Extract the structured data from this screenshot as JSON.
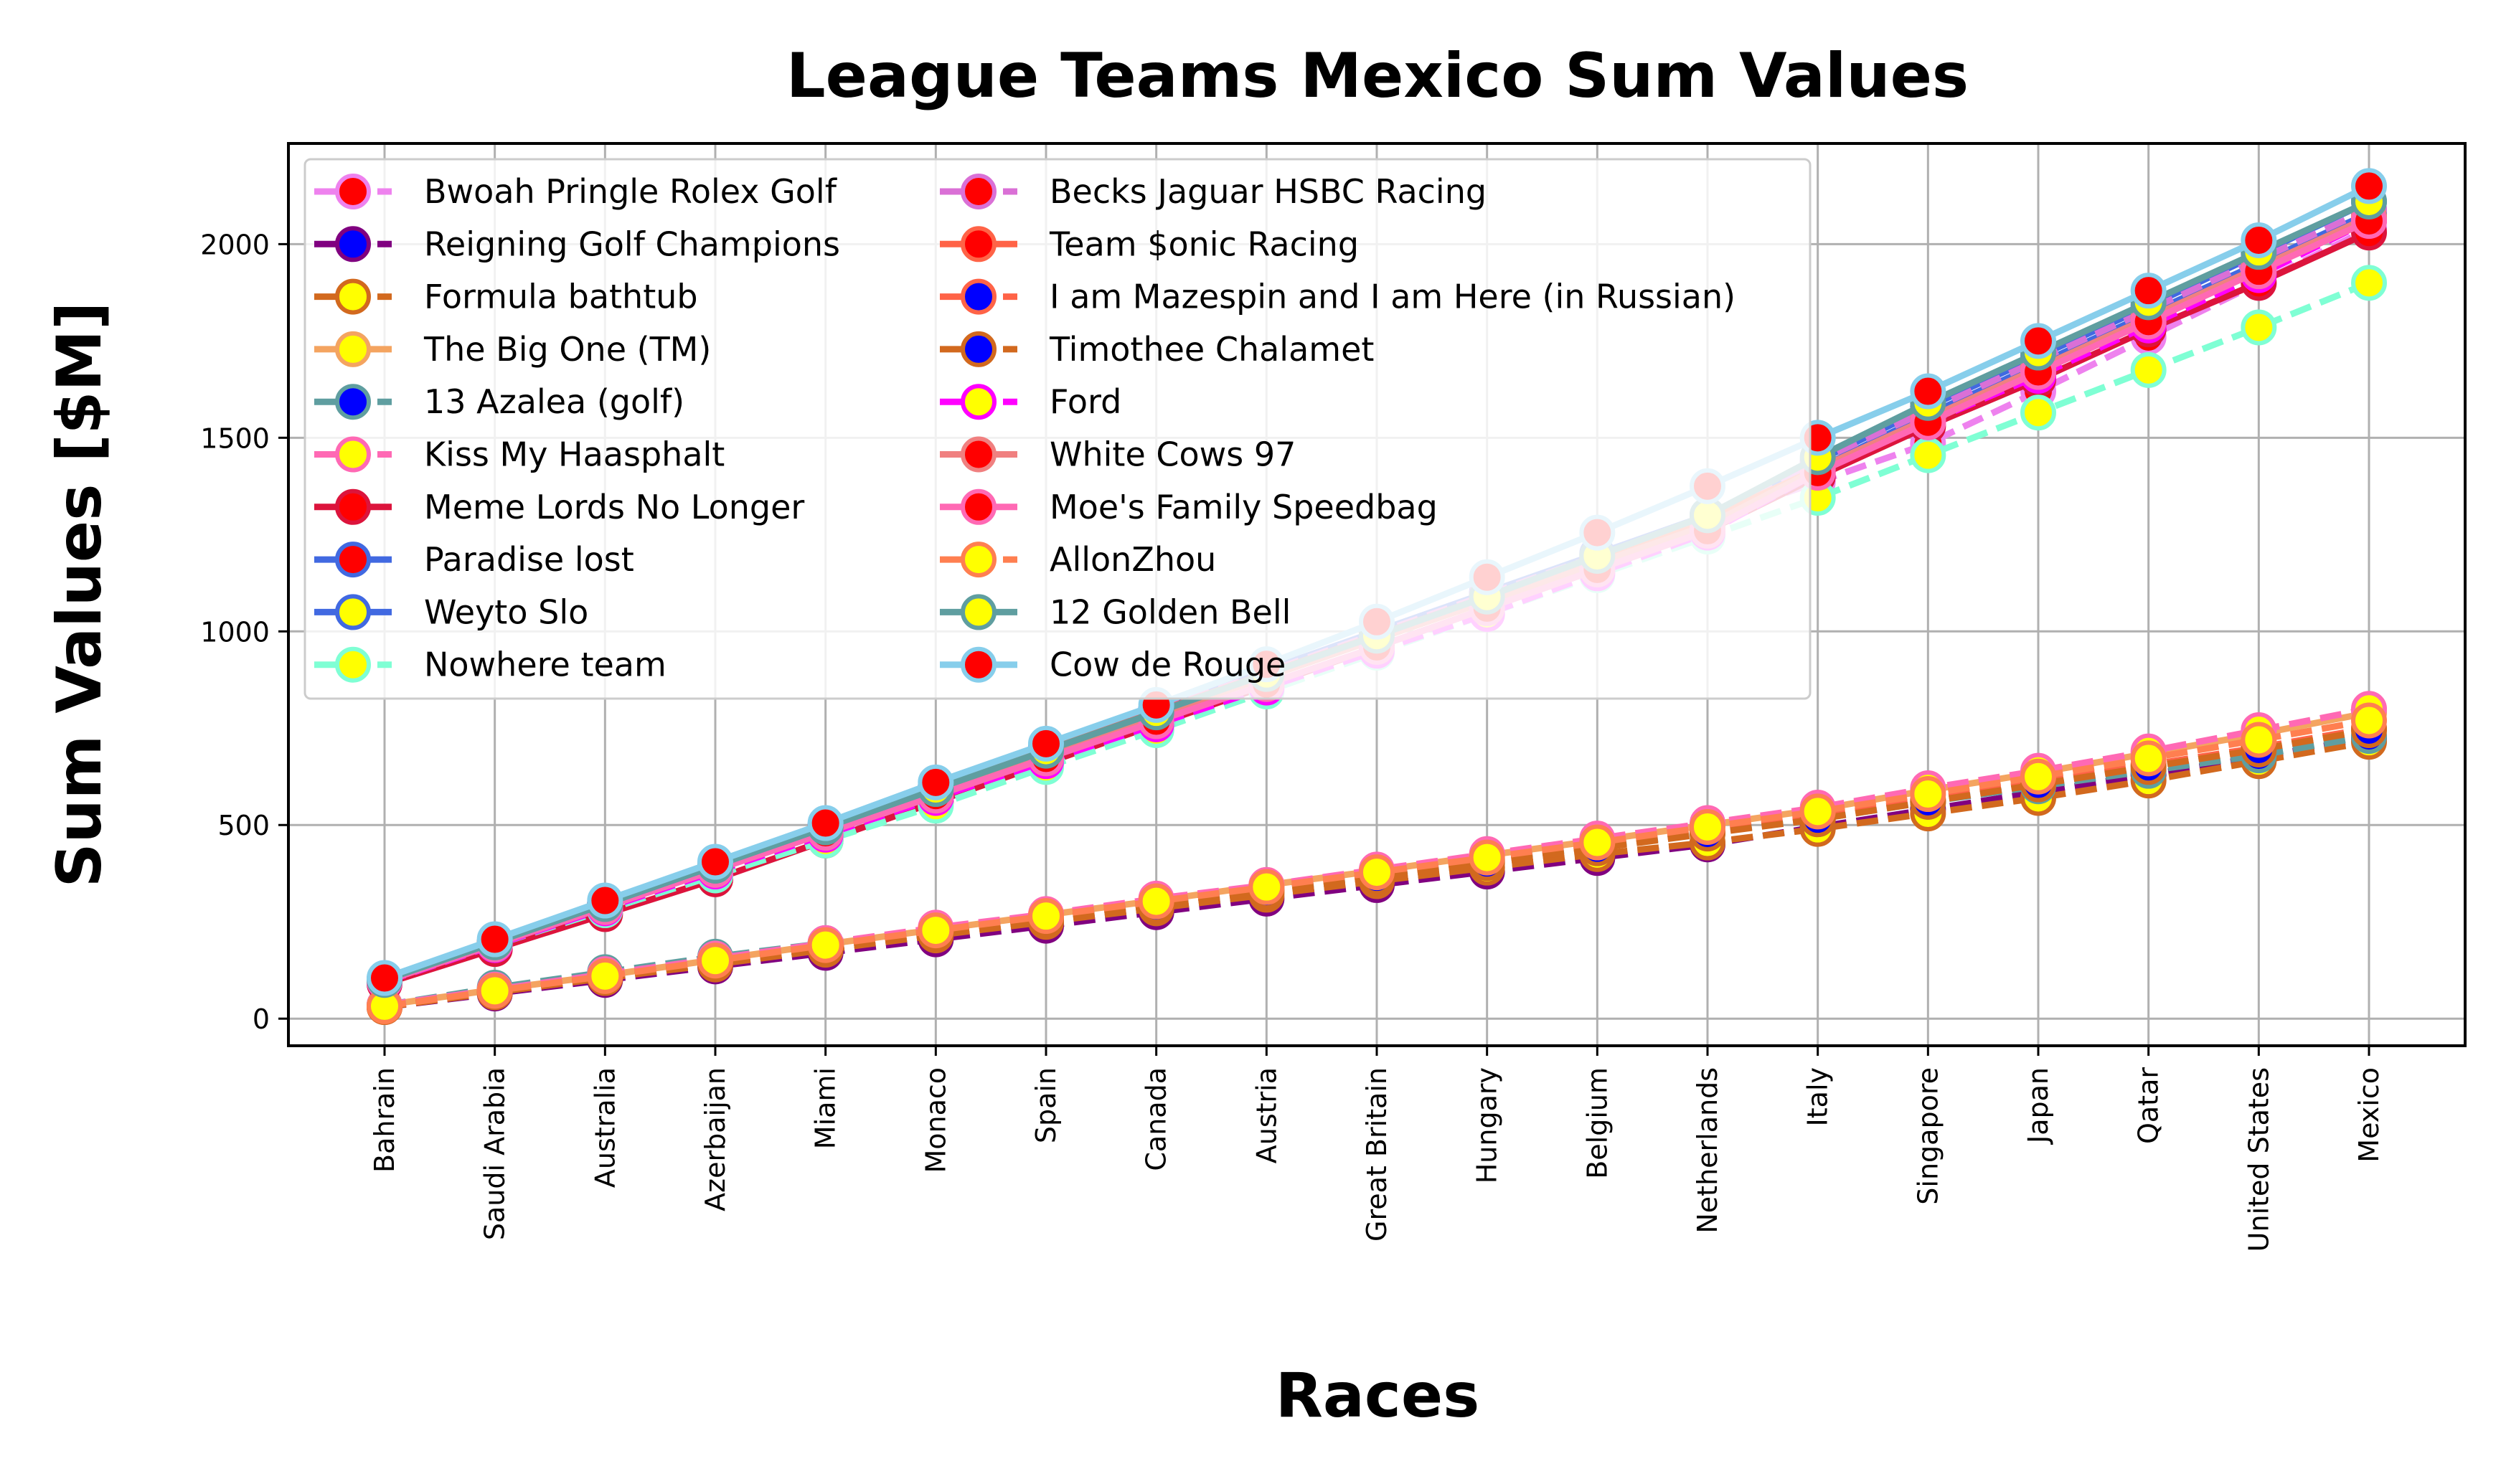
{
  "chart_data": {
    "type": "line",
    "title": "League Teams Mexico Sum Values",
    "xlabel": "Races",
    "ylabel": "Sum Values [$M]",
    "ylim": [
      -70,
      2260
    ],
    "yticks": [
      0,
      500,
      1000,
      1500,
      2000
    ],
    "grid": true,
    "legend_position": "upper-left",
    "legend_columns": 2,
    "categories": [
      "Bahrain",
      "Saudi Arabia",
      "Australia",
      "Azerbaijan",
      "Miami",
      "Monaco",
      "Spain",
      "Canada",
      "Austria",
      "Great Britain",
      "Hungary",
      "Belgium",
      "Netherlands",
      "Italy",
      "Singapore",
      "Japan",
      "Qatar",
      "United States",
      "Mexico"
    ],
    "series": [
      {
        "name": "Bwoah Pringle Rolex Golf",
        "color": "#ee82ee",
        "marker_face": "#ff0000",
        "dashed": true,
        "values": [
          100,
          198,
          297,
          396,
          495,
          594,
          693,
          792,
          891,
          990,
          1089,
          1188,
          1287,
          1386,
          1485,
          1620,
          1760,
          1900,
          2040
        ]
      },
      {
        "name": "Reigning Golf Champions",
        "color": "#800080",
        "marker_face": "#0000ff",
        "dashed": true,
        "values": [
          30,
          65,
          100,
          135,
          170,
          205,
          240,
          275,
          310,
          345,
          380,
          415,
          450,
          495,
          540,
          585,
          630,
          675,
          725
        ]
      },
      {
        "name": "Formula bathtub",
        "color": "#d2691e",
        "marker_face": "#ffff00",
        "dashed": true,
        "values": [
          30,
          68,
          105,
          140,
          178,
          215,
          250,
          285,
          320,
          355,
          390,
          425,
          455,
          490,
          530,
          570,
          615,
          665,
          715
        ]
      },
      {
        "name": "The Big One (TM)",
        "color": "#f4a460",
        "marker_face": "#ffff00",
        "dashed": false,
        "values": [
          35,
          75,
          112,
          152,
          192,
          230,
          268,
          305,
          345,
          382,
          422,
          460,
          500,
          540,
          590,
          635,
          685,
          735,
          790
        ]
      },
      {
        "name": "13 Azalea (golf)",
        "color": "#5f9ea0",
        "marker_face": "#0000ff",
        "dashed": true,
        "values": [
          35,
          80,
          120,
          160,
          195,
          230,
          265,
          300,
          335,
          370,
          410,
          445,
          480,
          515,
          560,
          600,
          640,
          680,
          730
        ]
      },
      {
        "name": "Kiss My Haasphalt",
        "color": "#ff69b4",
        "marker_face": "#ffff00",
        "dashed": true,
        "values": [
          35,
          75,
          115,
          155,
          195,
          235,
          270,
          310,
          345,
          385,
          425,
          465,
          505,
          545,
          595,
          640,
          690,
          745,
          800
        ]
      },
      {
        "name": "Meme Lords No Longer",
        "color": "#dc143c",
        "marker_face": "#ff0000",
        "dashed": false,
        "values": [
          90,
          180,
          270,
          360,
          460,
          560,
          660,
          760,
          860,
          960,
          1060,
          1160,
          1260,
          1400,
          1530,
          1650,
          1780,
          1900,
          2030
        ]
      },
      {
        "name": "Paradise lost",
        "color": "#4169e1",
        "marker_face": "#ff0000",
        "dashed": false,
        "values": [
          100,
          198,
          298,
          398,
          500,
          600,
          700,
          800,
          900,
          1000,
          1100,
          1200,
          1300,
          1420,
          1560,
          1690,
          1820,
          1950,
          2080
        ]
      },
      {
        "name": "Weyto Slo",
        "color": "#4169e1",
        "marker_face": "#ffff00",
        "dashed": false,
        "values": [
          100,
          198,
          298,
          398,
          500,
          600,
          700,
          800,
          900,
          1000,
          1100,
          1200,
          1300,
          1440,
          1580,
          1710,
          1840,
          1975,
          2110
        ]
      },
      {
        "name": "Nowhere team",
        "color": "#7fffd4",
        "marker_face": "#ffff00",
        "dashed": true,
        "values": [
          95,
          190,
          280,
          370,
          460,
          550,
          650,
          745,
          845,
          945,
          1045,
          1145,
          1245,
          1345,
          1455,
          1565,
          1675,
          1785,
          1900
        ]
      },
      {
        "name": "Becks Jaguar HSBC Racing",
        "color": "#da70d6",
        "marker_face": "#ff0000",
        "dashed": true,
        "values": [
          100,
          195,
          295,
          395,
          495,
          595,
          695,
          795,
          895,
          995,
          1095,
          1195,
          1295,
          1440,
          1570,
          1700,
          1830,
          1960,
          2090
        ]
      },
      {
        "name": "Team $onic Racing",
        "color": "#ff6347",
        "marker_face": "#ff0000",
        "dashed": false,
        "values": [
          100,
          197,
          296,
          395,
          495,
          594,
          693,
          792,
          891,
          990,
          1090,
          1190,
          1290,
          1420,
          1550,
          1680,
          1810,
          1940,
          2070
        ]
      },
      {
        "name": "I am Mazespin and I am Here (in Russian)",
        "color": "#ff6347",
        "marker_face": "#0000ff",
        "dashed": true,
        "values": [
          30,
          70,
          108,
          148,
          185,
          222,
          258,
          295,
          332,
          370,
          408,
          445,
          482,
          520,
          565,
          610,
          655,
          700,
          750
        ]
      },
      {
        "name": "Timothee Chalamet",
        "color": "#d2691e",
        "marker_face": "#0000ff",
        "dashed": true,
        "values": [
          30,
          68,
          105,
          143,
          180,
          217,
          254,
          291,
          328,
          365,
          402,
          440,
          478,
          515,
          560,
          605,
          650,
          695,
          745
        ]
      },
      {
        "name": "Ford",
        "color": "#ff00ff",
        "marker_face": "#ffff00",
        "dashed": true,
        "values": [
          95,
          190,
          285,
          380,
          475,
          570,
          665,
          760,
          855,
          950,
          1045,
          1150,
          1255,
          1410,
          1540,
          1660,
          1790,
          1920,
          2060
        ]
      },
      {
        "name": "White Cows 97",
        "color": "#f08080",
        "marker_face": "#ff0000",
        "dashed": false,
        "values": [
          98,
          196,
          294,
          392,
          490,
          588,
          686,
          784,
          882,
          980,
          1078,
          1176,
          1274,
          1420,
          1550,
          1680,
          1810,
          1940,
          2070
        ]
      },
      {
        "name": "Moe's Family Speedbag",
        "color": "#ff69b4",
        "marker_face": "#ff0000",
        "dashed": false,
        "values": [
          96,
          192,
          288,
          384,
          480,
          576,
          672,
          768,
          864,
          960,
          1060,
          1160,
          1260,
          1410,
          1540,
          1670,
          1800,
          1930,
          2060
        ]
      },
      {
        "name": "AllonZhou",
        "color": "#ff7f50",
        "marker_face": "#ffff00",
        "dashed": true,
        "values": [
          32,
          72,
          110,
          150,
          190,
          228,
          265,
          303,
          340,
          378,
          416,
          455,
          495,
          535,
          580,
          625,
          672,
          720,
          770
        ]
      },
      {
        "name": "12 Golden Bell",
        "color": "#5f9ea0",
        "marker_face": "#ffff00",
        "dashed": false,
        "values": [
          100,
          197,
          296,
          395,
          494,
          593,
          692,
          791,
          890,
          989,
          1090,
          1195,
          1300,
          1450,
          1590,
          1720,
          1850,
          1980,
          2110
        ]
      },
      {
        "name": "Cow de Rouge",
        "color": "#87ceeb",
        "marker_face": "#ff0000",
        "dashed": false,
        "values": [
          105,
          205,
          305,
          405,
          505,
          610,
          710,
          810,
          915,
          1025,
          1140,
          1255,
          1375,
          1500,
          1620,
          1750,
          1880,
          2010,
          2150
        ]
      }
    ]
  }
}
